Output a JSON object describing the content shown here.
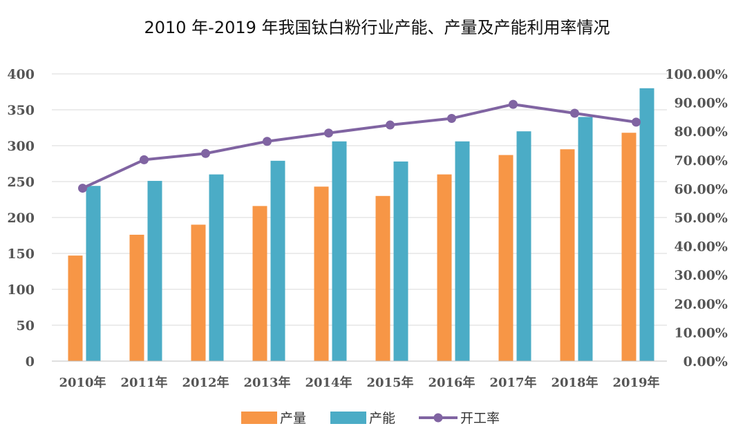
{
  "chart_data": {
    "type": "bar",
    "title": "2010 年-2019 年我国钛白粉行业产能、产量及产能利用率情况",
    "categories": [
      "2010年",
      "2011年",
      "2012年",
      "2013年",
      "2014年",
      "2015年",
      "2016年",
      "2017年",
      "2018年",
      "2019年"
    ],
    "series": [
      {
        "name": "产量",
        "type": "bar",
        "axis": "left",
        "color": "#F79646",
        "values": [
          147,
          176,
          190,
          216,
          243,
          230,
          260,
          287,
          295,
          318
        ]
      },
      {
        "name": "产能",
        "type": "bar",
        "axis": "left",
        "color": "#4BACC6",
        "values": [
          244,
          251,
          260,
          279,
          306,
          278,
          306,
          320,
          340,
          380
        ]
      },
      {
        "name": "开工率",
        "type": "line",
        "axis": "right",
        "color": "#8064A2",
        "values": [
          60.2,
          70.1,
          72.3,
          76.5,
          79.4,
          82.2,
          84.5,
          89.4,
          86.3,
          83.2
        ]
      }
    ],
    "ylim_left": [
      0,
      400
    ],
    "yticks_left": [
      "0",
      "50",
      "100",
      "150",
      "200",
      "250",
      "300",
      "350",
      "400"
    ],
    "ylim_right": [
      0,
      100
    ],
    "yticks_right": [
      "0.00%",
      "10.00%",
      "20.00%",
      "30.00%",
      "40.00%",
      "50.00%",
      "60.00%",
      "70.00%",
      "80.00%",
      "90.00%",
      "100.00%"
    ],
    "grid": true,
    "legend": "bottom"
  }
}
